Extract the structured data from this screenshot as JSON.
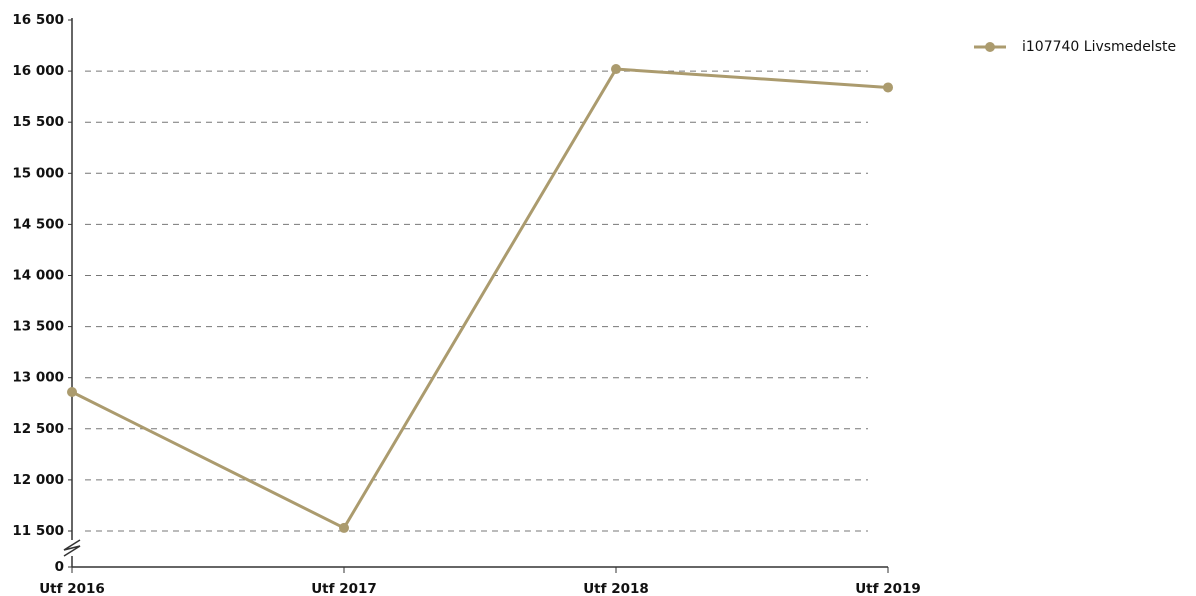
{
  "chart_data": {
    "type": "line",
    "categories": [
      "Utf 2016",
      "Utf 2017",
      "Utf 2018",
      "Utf 2019"
    ],
    "series": [
      {
        "name": "i107740 Livsmedelste",
        "color": "#ab9b6e",
        "values": [
          12860,
          11530,
          16020,
          15840
        ]
      }
    ],
    "ylim": [
      11500,
      16500
    ],
    "yticks": [
      {
        "value": 0,
        "label": "0"
      },
      {
        "value": 11500,
        "label": "11 500"
      },
      {
        "value": 12000,
        "label": "12 000"
      },
      {
        "value": 12500,
        "label": "12 500"
      },
      {
        "value": 13000,
        "label": "13 000"
      },
      {
        "value": 13500,
        "label": "13 500"
      },
      {
        "value": 14000,
        "label": "14 000"
      },
      {
        "value": 14500,
        "label": "14 500"
      },
      {
        "value": 15000,
        "label": "15 000"
      },
      {
        "value": 15500,
        "label": "15 500"
      },
      {
        "value": 16000,
        "label": "16 000"
      },
      {
        "value": 16500,
        "label": "16 500"
      }
    ],
    "grid": true,
    "axis_break": true,
    "legend": "top-right"
  }
}
